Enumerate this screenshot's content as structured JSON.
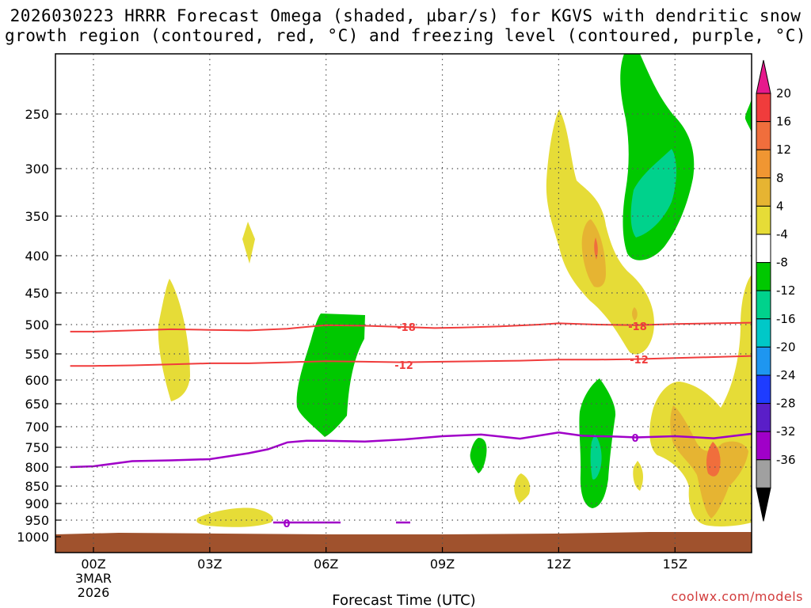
{
  "title_line1": "2026030223 HRRR Forecast Omega (shaded, µbar/s) for KGVS with dendritic snow",
  "title_line2": "growth region (contoured, red, °C) and freezing level (contoured, purple, °C)",
  "credit": "coolwx.com/models",
  "chart_data": {
    "type": "time-height cross section",
    "xlabel": "Forecast Time (UTC)",
    "x_ticks": [
      {
        "hour": 0,
        "label": "00Z"
      },
      {
        "hour": 3,
        "label": "03Z"
      },
      {
        "hour": 6,
        "label": "06Z"
      },
      {
        "hour": 9,
        "label": "09Z"
      },
      {
        "hour": 12,
        "label": "12Z"
      },
      {
        "hour": 15,
        "label": "15Z"
      }
    ],
    "x_date_labels": [
      "3MAR",
      "2026"
    ],
    "xlim": [
      -0.6,
      17
    ],
    "y_pressure_levels": [
      250,
      300,
      350,
      400,
      450,
      500,
      550,
      600,
      650,
      700,
      750,
      800,
      850,
      900,
      950,
      1000
    ],
    "colorbar": {
      "labels": [
        "20",
        "16",
        "12",
        "8",
        "4",
        "-4",
        "-8",
        "-12",
        "-16",
        "-20",
        "-24",
        "-28",
        "-32",
        "-36"
      ],
      "colors": [
        "#f03c3c",
        "#f06e3c",
        "#f09632",
        "#e6b432",
        "#e6dc37",
        "#ffffff",
        "#00c800",
        "#00d28c",
        "#00c8c8",
        "#1e96f0",
        "#1e3cff",
        "#5a1ec8",
        "#a000c8",
        "#a0a0a0"
      ],
      "top_arrow_color": "#e6198c",
      "bottom_arrow_color": "#000000"
    },
    "contour_labels": {
      "dgz_upper": "-18",
      "dgz_lower": "-12",
      "freezing": "0"
    },
    "colors": {
      "dgz_line": "#f03c3c",
      "freezing_line": "#a000c8",
      "ground": "#a0522d",
      "yellow": "#e6dc37",
      "orange_light": "#e6b432",
      "orange": "#f06e3c",
      "green": "#00c800",
      "teal": "#00d28c"
    },
    "dgz_upper_line": [
      [
        -0.6,
        512
      ],
      [
        0,
        512
      ],
      [
        1,
        510
      ],
      [
        2,
        508
      ],
      [
        3,
        509
      ],
      [
        4,
        510
      ],
      [
        5,
        507
      ],
      [
        6,
        501
      ],
      [
        7,
        502
      ],
      [
        8,
        504
      ],
      [
        8.8,
        506
      ],
      [
        9.5,
        505
      ],
      [
        10.5,
        503
      ],
      [
        11.5,
        500
      ],
      [
        12,
        498
      ],
      [
        13,
        500
      ],
      [
        14,
        501
      ],
      [
        15,
        499
      ],
      [
        16,
        498
      ],
      [
        17,
        497
      ]
    ],
    "dgz_lower_line": [
      [
        -0.6,
        573
      ],
      [
        0,
        573
      ],
      [
        1,
        572
      ],
      [
        2,
        570
      ],
      [
        3,
        568
      ],
      [
        4,
        568
      ],
      [
        5,
        566
      ],
      [
        6,
        564
      ],
      [
        7,
        565
      ],
      [
        8,
        566
      ],
      [
        9,
        565
      ],
      [
        10,
        564
      ],
      [
        11,
        563
      ],
      [
        12,
        561
      ],
      [
        13,
        561
      ],
      [
        14,
        560
      ],
      [
        15,
        558
      ],
      [
        16,
        556
      ],
      [
        17,
        554
      ]
    ],
    "freezing_line": [
      [
        -0.6,
        800
      ],
      [
        0,
        798
      ],
      [
        1,
        785
      ],
      [
        2,
        783
      ],
      [
        3,
        780
      ],
      [
        4,
        765
      ],
      [
        4.5,
        755
      ],
      [
        5,
        738
      ],
      [
        5.5,
        734
      ],
      [
        6,
        734
      ],
      [
        7,
        736
      ],
      [
        8,
        731
      ],
      [
        9,
        723
      ],
      [
        10,
        719
      ],
      [
        11,
        729
      ],
      [
        12,
        714
      ],
      [
        12.6,
        722
      ],
      [
        13,
        723
      ],
      [
        13.5,
        724
      ],
      [
        14,
        726
      ],
      [
        15,
        723
      ],
      [
        16,
        728
      ],
      [
        17,
        717
      ]
    ]
  }
}
